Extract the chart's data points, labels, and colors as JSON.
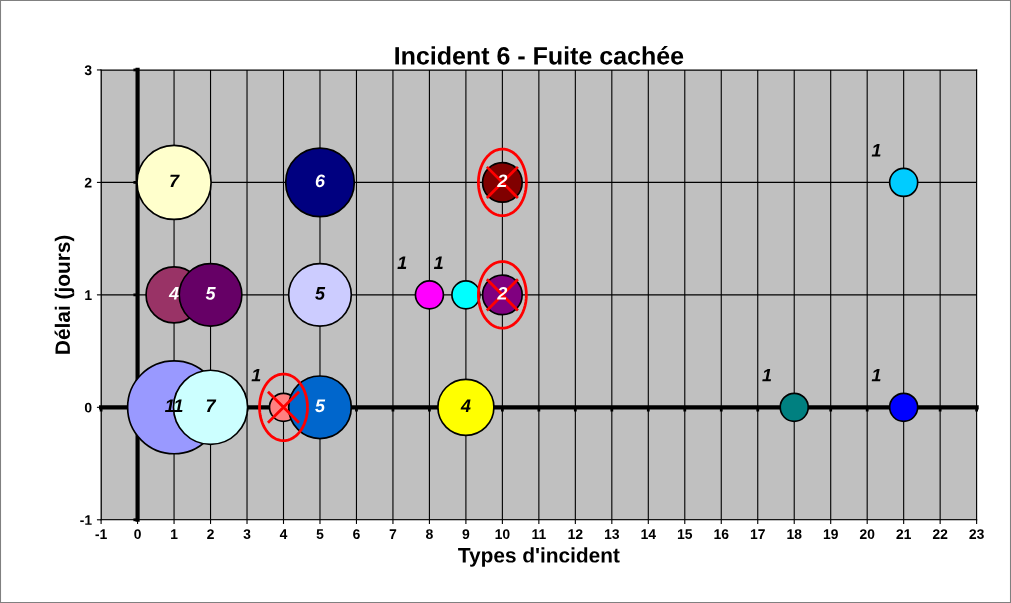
{
  "chart_data": {
    "type": "bubble",
    "title": "Incident 6 - Fuite cachée",
    "xlabel": "Types d'incident",
    "ylabel": "Délai (jours)",
    "xlim": [
      -1,
      23
    ],
    "ylim": [
      -1,
      3
    ],
    "xticks": [
      -1,
      0,
      1,
      2,
      3,
      4,
      5,
      6,
      7,
      8,
      9,
      10,
      11,
      12,
      13,
      14,
      15,
      16,
      17,
      18,
      19,
      20,
      21,
      22,
      23
    ],
    "yticks": [
      -1,
      0,
      1,
      2,
      3
    ],
    "grid": true,
    "legend": false,
    "series": [
      {
        "x": [
          1,
          5,
          10,
          21,
          1,
          2,
          5,
          8,
          9,
          10,
          1,
          2,
          4,
          5,
          9,
          18,
          21
        ],
        "values": [
          2,
          2,
          2,
          2,
          1,
          1,
          1,
          1,
          1,
          1,
          0,
          0,
          0,
          0,
          0,
          0,
          0
        ],
        "sizes": [
          7,
          6,
          2,
          1,
          4,
          5,
          5,
          1,
          1,
          2,
          11,
          7,
          1,
          5,
          4,
          1,
          1
        ],
        "value_labels": [
          "7",
          "6",
          "2",
          "1",
          "4",
          "5",
          "5",
          "1",
          "1",
          "2",
          "11",
          "7",
          "1",
          "5",
          "4",
          "1",
          "1"
        ],
        "colors": [
          "#ffffcc",
          "#000080",
          "#800000",
          "#00ccff",
          "#993366",
          "#660066",
          "#ccccff",
          "#ff00ff",
          "#00ffff",
          "#800080",
          "#9999ff",
          "#ccffff",
          "#ff8080",
          "#0066cc",
          "#ffff00",
          "#008080",
          "#0000ff"
        ]
      },
      {
        "type": "scatter",
        "marker": "cross",
        "color": "#ff0000",
        "x": [
          10,
          10,
          4
        ],
        "values": [
          2,
          1,
          0
        ]
      }
    ]
  }
}
